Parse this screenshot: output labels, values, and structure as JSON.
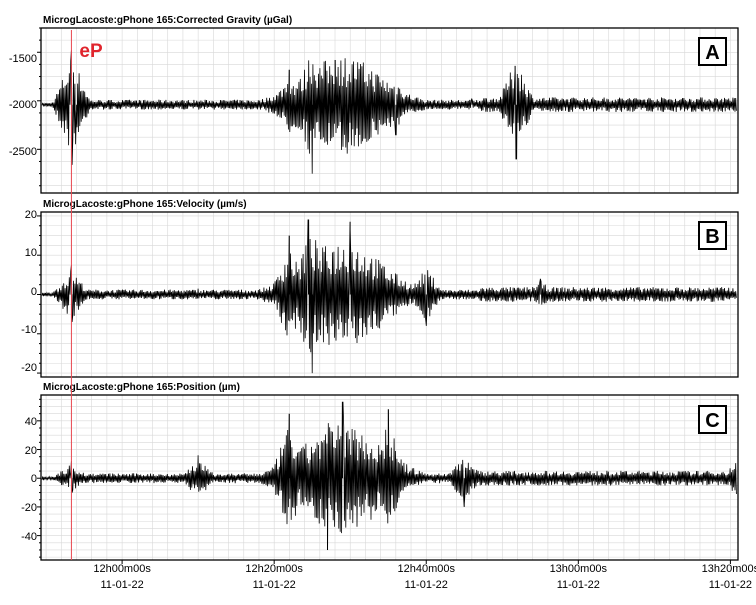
{
  "chart_data": [
    {
      "type": "line",
      "panel_label": "A",
      "title": "MicrogLacoste:gPhone 165:Corrected Gravity (µGal)",
      "yticks": [
        -1500,
        -2000,
        -2500
      ],
      "ylim": [
        -2950,
        -1250
      ],
      "baseline": -2040,
      "pick_marker": "eP",
      "pick_time": "11:53:20",
      "series": [
        {
          "values": [
            {
              "t": "11:53:10",
              "v": -2040
            },
            {
              "t": "11:53:20",
              "v": -1480
            },
            {
              "t": "11:53:25",
              "v": -2660
            },
            {
              "t": "11:54:00",
              "v": -2100
            },
            {
              "t": "12:15:00",
              "v": -2000
            },
            {
              "t": "12:22:00",
              "v": -1680
            },
            {
              "t": "12:25:00",
              "v": -2750
            },
            {
              "t": "12:28:00",
              "v": -1580
            },
            {
              "t": "12:36:00",
              "v": -2350
            },
            {
              "t": "12:46:00",
              "v": -1980
            },
            {
              "t": "12:51:40",
              "v": -1640
            },
            {
              "t": "12:51:50",
              "v": -2600
            },
            {
              "t": "13:21:00",
              "v": -2040
            }
          ]
        }
      ]
    },
    {
      "type": "line",
      "panel_label": "B",
      "title": "MicrogLacoste:gPhone 165:Velocity (µm/s)",
      "yticks": [
        20,
        10,
        0,
        -10,
        -20
      ],
      "ylim": [
        -21,
        21
      ],
      "baseline": 0,
      "series": [
        {
          "values": [
            {
              "t": "11:53:10",
              "v": 0
            },
            {
              "t": "11:53:20",
              "v": 7.5
            },
            {
              "t": "11:53:25",
              "v": -7
            },
            {
              "t": "12:10:00",
              "v": 1.5
            },
            {
              "t": "12:22:00",
              "v": 15
            },
            {
              "t": "12:24:30",
              "v": 19
            },
            {
              "t": "12:25:00",
              "v": -20
            },
            {
              "t": "12:30:00",
              "v": 18.5
            },
            {
              "t": "12:40:00",
              "v": -8
            },
            {
              "t": "12:55:00",
              "v": 4
            },
            {
              "t": "13:21:00",
              "v": 2
            }
          ]
        }
      ]
    },
    {
      "type": "line",
      "panel_label": "C",
      "title": "MicrogLacoste:gPhone 165:Position (µm)",
      "yticks": [
        40,
        20,
        0,
        -20,
        -40
      ],
      "ylim": [
        -57,
        58
      ],
      "baseline": 0,
      "series": [
        {
          "values": [
            {
              "t": "11:53:10",
              "v": 0
            },
            {
              "t": "11:53:20",
              "v": 12
            },
            {
              "t": "11:53:25",
              "v": -10
            },
            {
              "t": "12:10:00",
              "v": 16
            },
            {
              "t": "12:22:00",
              "v": 45
            },
            {
              "t": "12:27:00",
              "v": -50
            },
            {
              "t": "12:29:00",
              "v": 53
            },
            {
              "t": "12:35:00",
              "v": 48
            },
            {
              "t": "12:45:00",
              "v": -20
            },
            {
              "t": "13:21:00",
              "v": 15
            }
          ]
        }
      ]
    }
  ],
  "time_axis": {
    "range": [
      "11:49:20",
      "13:21:00"
    ],
    "ticks": [
      {
        "t": "12:00:00",
        "time": "12h00m00s",
        "date": "11-01-22"
      },
      {
        "t": "12:20:00",
        "time": "12h20m00s",
        "date": "11-01-22"
      },
      {
        "t": "12:40:00",
        "time": "12h40m00s",
        "date": "11-01-22"
      },
      {
        "t": "13:00:00",
        "time": "13h00m00s",
        "date": "11-01-22"
      },
      {
        "t": "13:20:00",
        "time": "13h20m00s",
        "date": "11-01-22"
      }
    ]
  },
  "colors": {
    "trace": "#000000",
    "pick_line": "#e8474f",
    "pick_text": "#e0252d",
    "grid": "#d8d8d8",
    "frame": "#000000"
  }
}
